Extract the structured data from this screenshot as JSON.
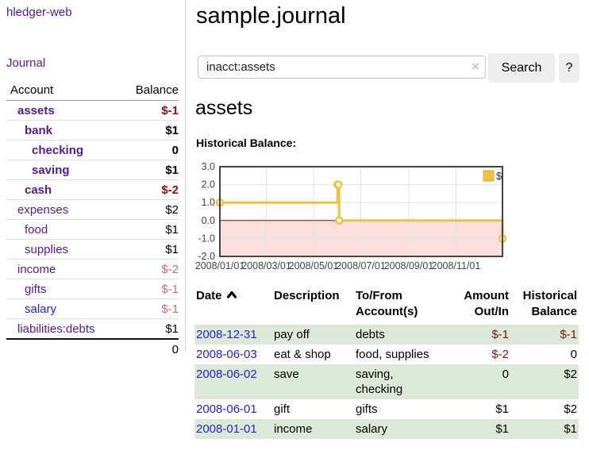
{
  "app_title": "hledger-web",
  "sidebar": {
    "journal_link": "Journal",
    "table": {
      "account_header": "Account",
      "balance_header": "Balance",
      "rows": [
        {
          "account": "assets",
          "balance": "$-1"
        },
        {
          "account": "bank",
          "balance": "$1"
        },
        {
          "account": "checking",
          "balance": "0"
        },
        {
          "account": "saving",
          "balance": "$1"
        },
        {
          "account": "cash",
          "balance": "$-2"
        },
        {
          "account": "expenses",
          "balance": "$2"
        },
        {
          "account": "food",
          "balance": "$1"
        },
        {
          "account": "supplies",
          "balance": "$1"
        },
        {
          "account": "income",
          "balance": "$-2"
        },
        {
          "account": "gifts",
          "balance": "$-1"
        },
        {
          "account": "salary",
          "balance": "$-1"
        },
        {
          "account": "liabilities:debts",
          "balance": "$1"
        }
      ],
      "total": "0"
    }
  },
  "main": {
    "title": "sample.journal",
    "search": {
      "value": "inacct:assets",
      "clear_icon": "×",
      "search_button": "Search",
      "help_button": "?"
    },
    "account_heading": "assets",
    "chart_heading": "Historical Balance:"
  },
  "chart_data": {
    "type": "line",
    "title": "Historical Balance:",
    "series": [
      {
        "name": "$",
        "color": "#edc240",
        "step": true,
        "points": [
          [
            "2008-01-01",
            1
          ],
          [
            "2008-06-01",
            2
          ],
          [
            "2008-06-02",
            2
          ],
          [
            "2008-06-03",
            0
          ],
          [
            "2008-12-31",
            -1
          ]
        ]
      }
    ],
    "xrange": [
      "2008-01-01",
      "2008-12-31"
    ],
    "ylim": [
      -2,
      3
    ],
    "yticks": [
      3.0,
      2.0,
      1.0,
      0.0,
      -1.0,
      -2.0
    ],
    "xticks": [
      "2008/01/01",
      "2008/03/01",
      "2008/05/01",
      "2008/07/01",
      "2008/09/01",
      "2008/11/01"
    ],
    "grid": true,
    "legend_position": "top-right",
    "negative_region_color": "#fbdede",
    "zero_line_color": "#9d0d0d",
    "border_color": "#444444",
    "gridline_color": "#e3e3e3",
    "tick_label_color": "#444444"
  },
  "register": {
    "headers": {
      "date": "Date",
      "description": "Description",
      "accounts": "To/From Account(s)",
      "amount": "Amount Out/In",
      "balance": "Historical Balance"
    },
    "rows": [
      {
        "date": "2008-12-31",
        "description": "pay off",
        "accounts": "debts",
        "amount": "$-1",
        "balance": "$-1"
      },
      {
        "date": "2008-06-03",
        "description": "eat & shop",
        "accounts": "food, supplies",
        "amount": "$-2",
        "balance": "0"
      },
      {
        "date": "2008-06-02",
        "description": "save",
        "accounts": "saving, checking",
        "amount": "0",
        "balance": "$2"
      },
      {
        "date": "2008-06-01",
        "description": "gift",
        "accounts": "gifts",
        "amount": "$1",
        "balance": "$2"
      },
      {
        "date": "2008-01-01",
        "description": "income",
        "accounts": "salary",
        "amount": "$1",
        "balance": "$1"
      }
    ]
  }
}
